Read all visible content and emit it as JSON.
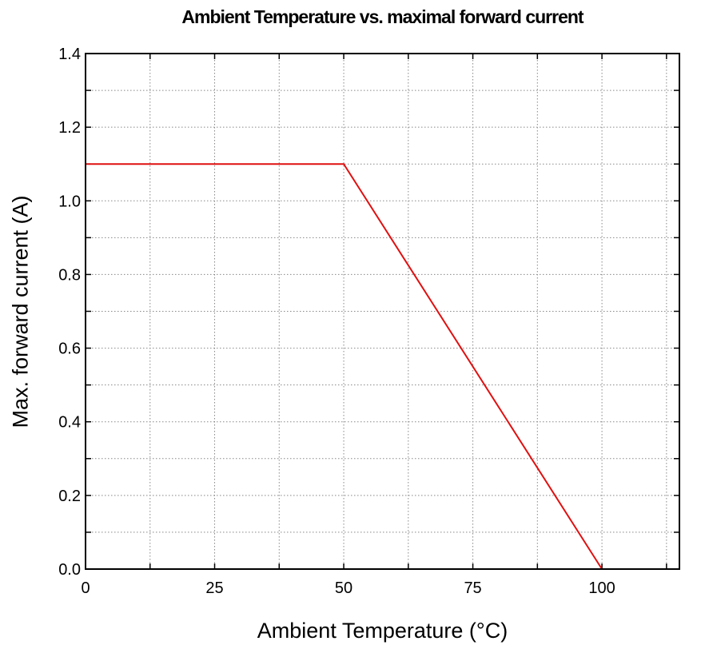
{
  "chart_data": {
    "type": "line",
    "title": "Ambient Temperature vs. maximal forward current",
    "xlabel": "Ambient Temperature (°C)",
    "ylabel": "Max. forward current (A)",
    "xlim": [
      0,
      115
    ],
    "ylim": [
      0,
      1.4
    ],
    "x_ticks": [
      0,
      25,
      50,
      75,
      100
    ],
    "x_tick_labels": [
      "0",
      "25",
      "50",
      "75",
      "100"
    ],
    "x_minor_step": 12.5,
    "y_ticks": [
      0,
      0.2,
      0.4,
      0.6,
      0.8,
      1.0,
      1.2,
      1.4
    ],
    "y_tick_labels": [
      "0.0",
      "0.2",
      "0.4",
      "0.6",
      "0.8",
      "1.0",
      "1.2",
      "1.4"
    ],
    "y_minor_step": 0.1,
    "grid": true,
    "series": [
      {
        "x": [
          0,
          50,
          100
        ],
        "y": [
          1.1,
          1.1,
          0.0
        ],
        "color": "#e01010"
      }
    ]
  }
}
